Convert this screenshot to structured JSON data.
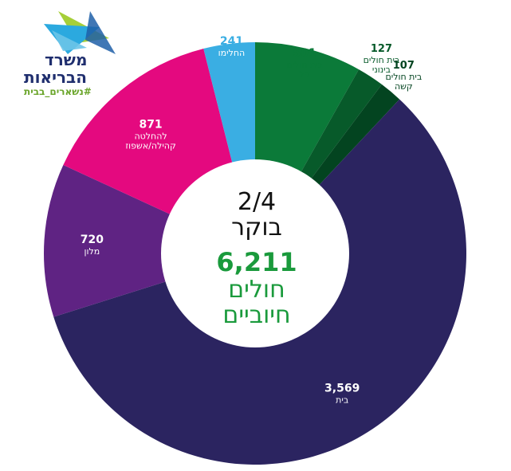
{
  "logo": {
    "line1": "משרד",
    "line2": "הבריאות",
    "tag": "#נשארים_בבית"
  },
  "center": {
    "date": "2/4",
    "time": "בוקר",
    "total": "6,211",
    "label1": "חולים",
    "label2": "חיוביים"
  },
  "chart_data": {
    "type": "pie",
    "title": "",
    "labels": [
      "בית חולים קל",
      "בית חולים בינוני",
      "בית חולים קשה",
      "בית",
      "מלון",
      "להחלטה קהילה/אשפוז",
      "החלימו"
    ],
    "label_lines": [
      [
        "בית חולים",
        "קל"
      ],
      [
        "בית חולים",
        "בינוני"
      ],
      [
        "בית חולים",
        "קשה"
      ],
      [
        "בית"
      ],
      [
        "מלון"
      ],
      [
        "להחלטה",
        "קהילה/אשפוז"
      ],
      [
        "החלימו"
      ]
    ],
    "values": [
      501,
      127,
      107,
      3569,
      720,
      871,
      241
    ],
    "value_labels": [
      "501",
      "127",
      "107",
      "3,569",
      "720",
      "871",
      "241"
    ],
    "colors": [
      "#0b7a39",
      "#075a2a",
      "#034420",
      "#2b2460",
      "#5f2383",
      "#e4097f",
      "#3aaee3"
    ],
    "label_colors": [
      "#0b7a39",
      "#075a2a",
      "#034420",
      "#ffffff",
      "#ffffff",
      "#ffffff",
      "#ffffff"
    ],
    "value_colors": [
      "#0b7a39",
      "#075a2a",
      "#034420",
      "#ffffff",
      "#ffffff",
      "#ffffff",
      "#3aaee3"
    ]
  }
}
